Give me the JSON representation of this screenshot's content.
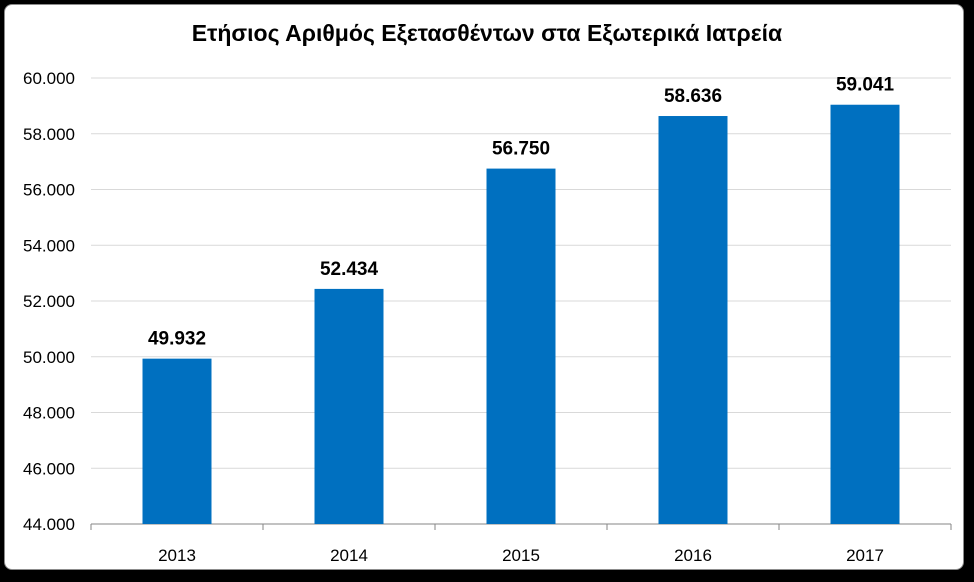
{
  "chart_data": {
    "type": "bar",
    "title": "Ετήσιος Αριθμός Εξετασθέντων στα Εξωτερικά Ιατρεία",
    "categories": [
      "2013",
      "2014",
      "2015",
      "2016",
      "2017"
    ],
    "values": [
      49932,
      52434,
      56750,
      58636,
      59041
    ],
    "value_labels": [
      "49.932",
      "52.434",
      "56.750",
      "58.636",
      "59.041"
    ],
    "ylim": [
      44000,
      60000
    ],
    "yticks": [
      44000,
      46000,
      48000,
      50000,
      52000,
      54000,
      56000,
      58000,
      60000
    ],
    "ytick_labels": [
      "44.000",
      "46.000",
      "48.000",
      "50.000",
      "52.000",
      "54.000",
      "56.000",
      "58.000",
      "60.000"
    ],
    "grid": true,
    "legend": "none",
    "bar_color": "#0070c0",
    "grid_color": "#d9d9d9",
    "axis_color": "#868686"
  }
}
